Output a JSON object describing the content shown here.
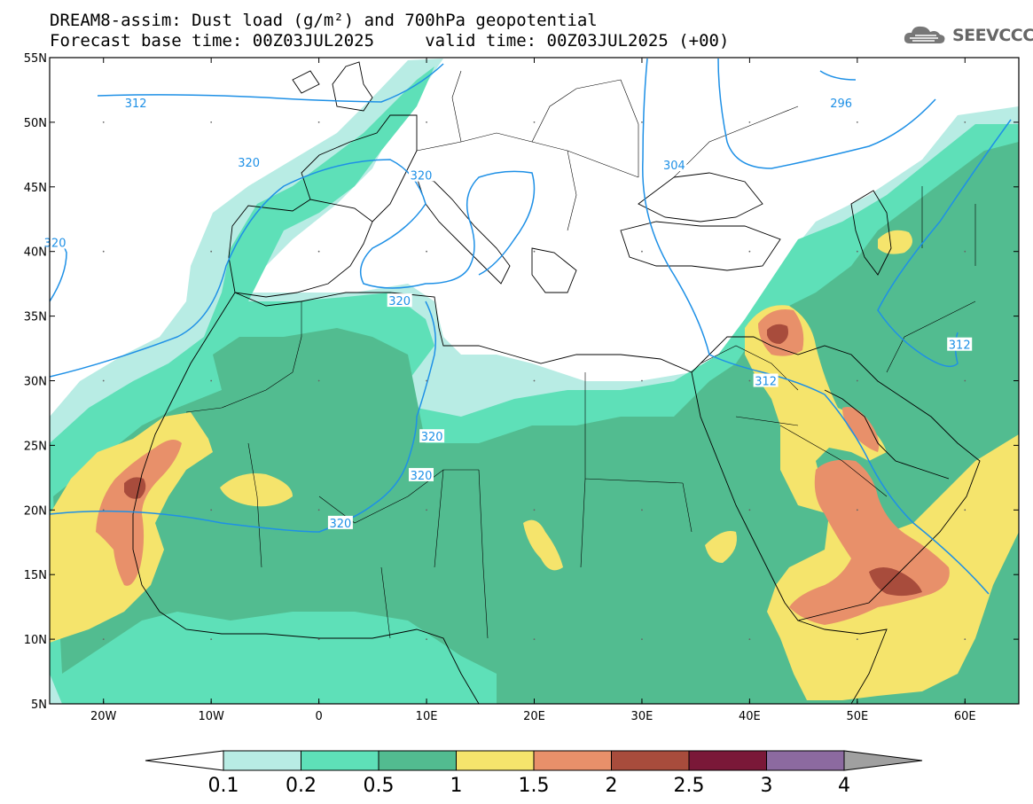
{
  "title": {
    "line1": "DREAM8-assim: Dust load (g/m²) and 700hPa geopotential",
    "line2": "Forecast base time: 00Z03JUL2025     valid time: 00Z03JUL2025 (+00)"
  },
  "logo": {
    "text": "SEEVCCC",
    "icon": "cloud-logo-icon"
  },
  "axes": {
    "lon_range": [
      -25,
      65
    ],
    "lat_range": [
      5,
      55
    ],
    "lat_ticks": [
      "55N",
      "50N",
      "45N",
      "40N",
      "35N",
      "30N",
      "25N",
      "20N",
      "15N",
      "10N",
      "5N"
    ],
    "lat_values": [
      55,
      50,
      45,
      40,
      35,
      30,
      25,
      20,
      15,
      10,
      5
    ],
    "lon_ticks": [
      "20W",
      "10W",
      "0",
      "10E",
      "20E",
      "30E",
      "40E",
      "50E",
      "60E"
    ],
    "lon_values": [
      -20,
      -10,
      0,
      10,
      20,
      30,
      40,
      50,
      60
    ]
  },
  "contour_labels": [
    {
      "text": "312",
      "lon": -17,
      "lat": 51.5
    },
    {
      "text": "296",
      "lon": 48.5,
      "lat": 51.5
    },
    {
      "text": "320",
      "lon": -6.5,
      "lat": 46.9
    },
    {
      "text": "320",
      "lon": 9.5,
      "lat": 45.9
    },
    {
      "text": "304",
      "lon": 33,
      "lat": 46.7
    },
    {
      "text": "320",
      "lon": -24.5,
      "lat": 40.7
    },
    {
      "text": "320",
      "lon": 7.5,
      "lat": 36.2
    },
    {
      "text": "312",
      "lon": 59.5,
      "lat": 32.8
    },
    {
      "text": "312",
      "lon": 41.5,
      "lat": 30.0
    },
    {
      "text": "320",
      "lon": 10.5,
      "lat": 25.7
    },
    {
      "text": "320",
      "lon": 9.5,
      "lat": 22.7
    },
    {
      "text": "320",
      "lon": 2,
      "lat": 19.0
    }
  ],
  "colorbar": {
    "ticks": [
      "0.1",
      "0.2",
      "0.5",
      "1",
      "1.5",
      "2",
      "2.5",
      "3",
      "4"
    ],
    "colors": [
      "#b8ece4",
      "#5ee0b8",
      "#52bc90",
      "#f5e46c",
      "#e8906a",
      "#a84c3c",
      "#7a1838",
      "#8c6aa0"
    ],
    "under_color": "#ffffff",
    "over_color": "#a0a0a0"
  },
  "legend_colors": {
    "ocean": "#ffffff",
    "land": "#ffffff",
    "contour": "#1e90e6",
    "border": "#000000"
  }
}
